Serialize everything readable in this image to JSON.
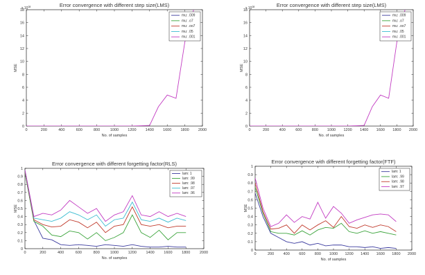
{
  "chart_data": [
    {
      "type": "line",
      "title": "Error convergence with different step size(LMS)",
      "xlabel": "No. of samples",
      "ylabel": "MSE",
      "y_exponent": "x 10",
      "y_exponent_power": "38",
      "xlim": [
        0,
        2000
      ],
      "ylim": [
        0,
        18
      ],
      "xticks": [
        0,
        200,
        400,
        600,
        800,
        1000,
        1200,
        1400,
        1600,
        1800,
        2000
      ],
      "yticks": [
        0,
        2,
        4,
        6,
        8,
        10,
        12,
        14,
        16,
        18
      ],
      "legend": "top-right",
      "series": [
        {
          "name": "mu: .009",
          "color": "#3a3a9e",
          "x": [],
          "y": []
        },
        {
          "name": "mu: .o7",
          "color": "#3aa33a",
          "x": [],
          "y": []
        },
        {
          "name": "mu: .oo7",
          "color": "#c0392b",
          "x": [],
          "y": []
        },
        {
          "name": "mu: .05",
          "color": "#3cbcd1",
          "x": [],
          "y": []
        },
        {
          "name": "mu: .001",
          "color": "#c23bc2",
          "x": [
            0,
            100,
            200,
            300,
            400,
            500,
            600,
            700,
            800,
            900,
            1000,
            1100,
            1200,
            1300,
            1400,
            1500,
            1600,
            1700,
            1800,
            1900
          ],
          "y": [
            0,
            0,
            0,
            0,
            0,
            0,
            0,
            0,
            0,
            0,
            0,
            0,
            0,
            0.05,
            0.1,
            3,
            4.8,
            4.3,
            13,
            18
          ]
        }
      ]
    },
    {
      "type": "line",
      "title": "Error convergence with different step size(LMS)",
      "xlabel": "No. of samples",
      "ylabel": "MSE",
      "y_exponent": "x 10",
      "y_exponent_power": "38",
      "xlim": [
        0,
        2000
      ],
      "ylim": [
        0,
        18
      ],
      "xticks": [
        0,
        200,
        400,
        600,
        800,
        1000,
        1200,
        1400,
        1600,
        1800,
        2000
      ],
      "yticks": [
        0,
        2,
        4,
        6,
        8,
        10,
        12,
        14,
        16,
        18
      ],
      "legend": "top-right",
      "series": [
        {
          "name": "mu: .009",
          "color": "#3a3a9e",
          "x": [],
          "y": []
        },
        {
          "name": "mu: .o7",
          "color": "#3aa33a",
          "x": [],
          "y": []
        },
        {
          "name": "mu: .oo7",
          "color": "#c0392b",
          "x": [],
          "y": []
        },
        {
          "name": "mu: .05",
          "color": "#3cbcd1",
          "x": [],
          "y": []
        },
        {
          "name": "mu: .001",
          "color": "#c23bc2",
          "x": [
            0,
            100,
            200,
            300,
            400,
            500,
            600,
            700,
            800,
            900,
            1000,
            1100,
            1200,
            1300,
            1400,
            1500,
            1600,
            1700,
            1800,
            1900
          ],
          "y": [
            0,
            0,
            0,
            0,
            0,
            0,
            0,
            0,
            0,
            0,
            0,
            0,
            0,
            0.05,
            0.1,
            3,
            4.8,
            4.3,
            13,
            18
          ]
        }
      ]
    },
    {
      "type": "line",
      "title": "Error convergence with different forgetting factor(RLS)",
      "xlabel": "No. of samples",
      "ylabel": "MSE",
      "xlim": [
        0,
        2000
      ],
      "ylim": [
        0,
        1
      ],
      "xticks": [
        0,
        200,
        400,
        600,
        800,
        1000,
        1200,
        1400,
        1600,
        1800,
        2000
      ],
      "yticks": [
        0,
        0.1,
        0.2,
        0.3,
        0.4,
        0.5,
        0.6,
        0.7,
        0.8,
        0.9,
        1
      ],
      "legend": "top-right",
      "series": [
        {
          "name": "lam: 1",
          "color": "#3a3a9e",
          "x": [
            0,
            100,
            200,
            300,
            400,
            500,
            600,
            700,
            800,
            900,
            1000,
            1100,
            1200,
            1300,
            1400,
            1500,
            1600,
            1700,
            1800
          ],
          "y": [
            0.95,
            0.35,
            0.13,
            0.11,
            0.05,
            0.04,
            0.05,
            0.04,
            0.03,
            0.05,
            0.04,
            0.03,
            0.05,
            0.03,
            0.02,
            0.02,
            0.03,
            0.02,
            0.02
          ]
        },
        {
          "name": "lam: .99",
          "color": "#3aa33a",
          "x": [
            0,
            100,
            200,
            300,
            400,
            500,
            600,
            700,
            800,
            900,
            1000,
            1100,
            1200,
            1300,
            1400,
            1500,
            1600,
            1700,
            1800
          ],
          "y": [
            0.95,
            0.34,
            0.28,
            0.17,
            0.15,
            0.22,
            0.2,
            0.12,
            0.2,
            0.1,
            0.14,
            0.2,
            0.42,
            0.2,
            0.14,
            0.23,
            0.11,
            0.2,
            0.2
          ]
        },
        {
          "name": "lam: .98",
          "color": "#c0392b",
          "x": [
            0,
            100,
            200,
            300,
            400,
            500,
            600,
            700,
            800,
            900,
            1000,
            1100,
            1200,
            1300,
            1400,
            1500,
            1600,
            1700,
            1800
          ],
          "y": [
            0.97,
            0.36,
            0.3,
            0.27,
            0.28,
            0.36,
            0.33,
            0.26,
            0.33,
            0.2,
            0.28,
            0.3,
            0.52,
            0.3,
            0.28,
            0.3,
            0.26,
            0.28,
            0.28
          ]
        },
        {
          "name": "lam: .97",
          "color": "#3cbcd1",
          "x": [
            0,
            100,
            200,
            300,
            400,
            500,
            600,
            700,
            800,
            900,
            1000,
            1100,
            1200,
            1300,
            1400,
            1500,
            1600,
            1700,
            1800
          ],
          "y": [
            0.98,
            0.38,
            0.36,
            0.34,
            0.38,
            0.46,
            0.42,
            0.36,
            0.42,
            0.28,
            0.36,
            0.38,
            0.58,
            0.36,
            0.34,
            0.38,
            0.33,
            0.38,
            0.35
          ]
        },
        {
          "name": "lam: .96",
          "color": "#c23bc2",
          "x": [
            0,
            100,
            200,
            300,
            400,
            500,
            600,
            700,
            800,
            900,
            1000,
            1100,
            1200,
            1300,
            1400,
            1500,
            1600,
            1700,
            1800
          ],
          "y": [
            0.98,
            0.4,
            0.44,
            0.42,
            0.48,
            0.6,
            0.52,
            0.44,
            0.5,
            0.34,
            0.42,
            0.46,
            0.66,
            0.42,
            0.4,
            0.46,
            0.4,
            0.44,
            0.4
          ]
        }
      ]
    },
    {
      "type": "line",
      "title": "Error convergence with different forgetting factor(FTF)",
      "xlabel": "No. of samples",
      "ylabel": "MSE",
      "xlim": [
        0,
        2000
      ],
      "ylim": [
        0,
        1
      ],
      "xticks": [
        0,
        200,
        400,
        600,
        800,
        1000,
        1200,
        1400,
        1600,
        1800,
        2000
      ],
      "yticks": [
        0,
        0.1,
        0.2,
        0.3,
        0.4,
        0.5,
        0.6,
        0.7,
        0.8,
        0.9,
        1
      ],
      "legend": "top-right",
      "series": [
        {
          "name": "lam: 1",
          "color": "#3a3a9e",
          "x": [
            0,
            100,
            200,
            300,
            400,
            500,
            600,
            700,
            800,
            900,
            1000,
            1100,
            1200,
            1300,
            1400,
            1500,
            1600,
            1700,
            1800
          ],
          "y": [
            0.68,
            0.4,
            0.2,
            0.15,
            0.1,
            0.08,
            0.1,
            0.06,
            0.08,
            0.05,
            0.06,
            0.06,
            0.04,
            0.04,
            0.03,
            0.04,
            0.02,
            0.03,
            0.02
          ]
        },
        {
          "name": "lam: .99",
          "color": "#3aa33a",
          "x": [
            0,
            100,
            200,
            300,
            400,
            500,
            600,
            700,
            800,
            900,
            1000,
            1100,
            1200,
            1300,
            1400,
            1500,
            1600,
            1700,
            1800
          ],
          "y": [
            0.75,
            0.44,
            0.22,
            0.2,
            0.2,
            0.18,
            0.23,
            0.18,
            0.24,
            0.27,
            0.26,
            0.32,
            0.22,
            0.2,
            0.23,
            0.2,
            0.22,
            0.2,
            0.18
          ]
        },
        {
          "name": "lam: .98",
          "color": "#c0392b",
          "x": [
            0,
            100,
            200,
            300,
            400,
            500,
            600,
            700,
            800,
            900,
            1000,
            1100,
            1200,
            1300,
            1400,
            1500,
            1600,
            1700,
            1800
          ],
          "y": [
            0.8,
            0.46,
            0.25,
            0.26,
            0.3,
            0.2,
            0.3,
            0.24,
            0.3,
            0.35,
            0.27,
            0.4,
            0.28,
            0.26,
            0.3,
            0.27,
            0.3,
            0.28,
            0.22
          ]
        },
        {
          "name": "lam: .97",
          "color": "#c23bc2",
          "x": [
            0,
            100,
            200,
            300,
            400,
            500,
            600,
            700,
            800,
            900,
            1000,
            1100,
            1200,
            1300,
            1400,
            1500,
            1600,
            1700,
            1800
          ],
          "y": [
            0.86,
            0.5,
            0.28,
            0.32,
            0.42,
            0.33,
            0.4,
            0.37,
            0.57,
            0.38,
            0.52,
            0.44,
            0.32,
            0.36,
            0.39,
            0.42,
            0.43,
            0.42,
            0.34
          ]
        }
      ]
    }
  ]
}
